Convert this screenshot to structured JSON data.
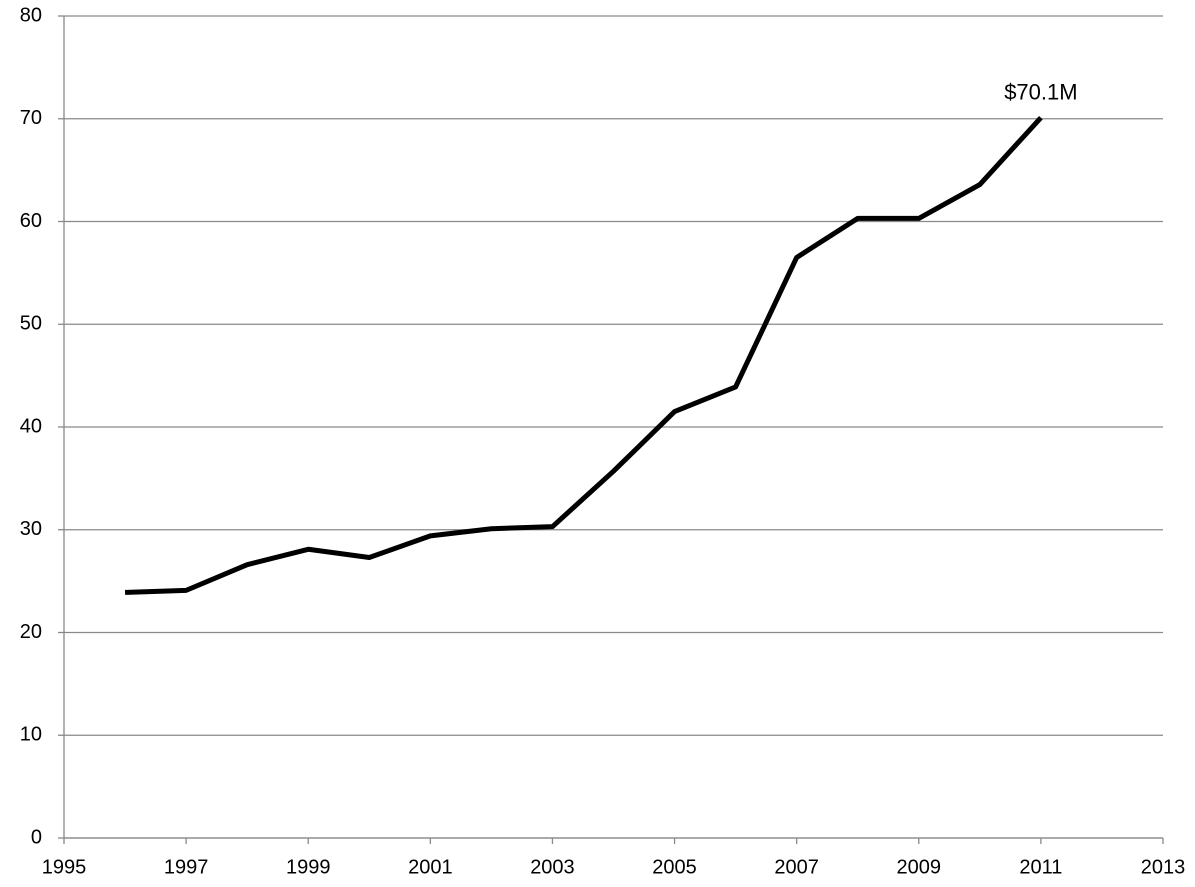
{
  "chart_data": {
    "type": "line",
    "x": [
      1996,
      1997,
      1998,
      1999,
      2000,
      2001,
      2002,
      2003,
      2004,
      2005,
      2006,
      2007,
      2008,
      2009,
      2010,
      2011
    ],
    "values": [
      23.9,
      24.1,
      26.6,
      28.1,
      27.3,
      29.4,
      30.1,
      30.3,
      35.7,
      41.5,
      43.9,
      56.5,
      60.3,
      60.3,
      63.6,
      70.1
    ],
    "value_labels": [
      null,
      null,
      null,
      null,
      null,
      null,
      null,
      null,
      null,
      null,
      null,
      null,
      null,
      null,
      null,
      "$70.1M"
    ],
    "color": "#000000",
    "xlim": [
      1995,
      2013
    ],
    "xticks": [
      1995,
      1997,
      1999,
      2001,
      2003,
      2005,
      2007,
      2009,
      2011,
      2013
    ],
    "ylim": [
      0,
      80
    ],
    "yticks": [
      0,
      10,
      20,
      30,
      40,
      50,
      60,
      70,
      80
    ],
    "grid": true
  }
}
